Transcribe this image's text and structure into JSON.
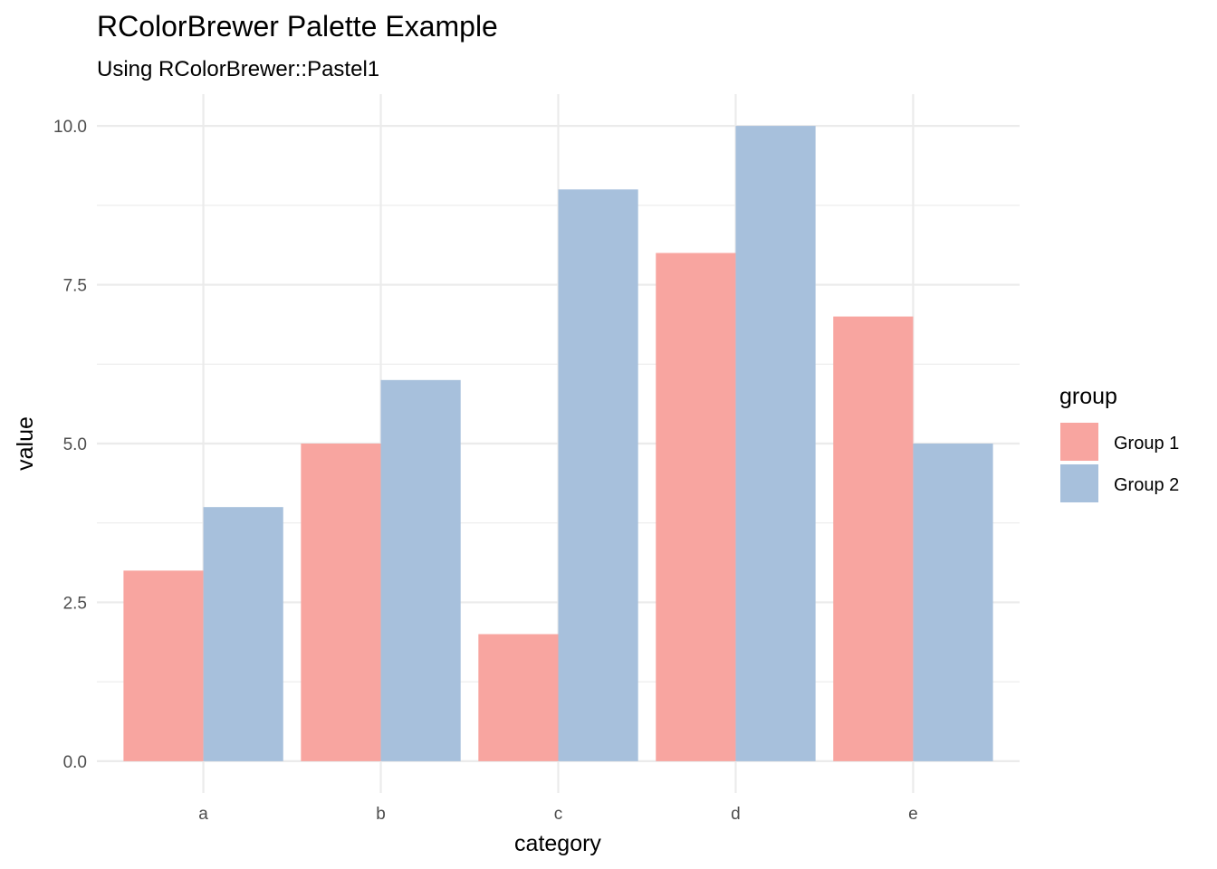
{
  "chart_data": {
    "type": "bar",
    "title": "RColorBrewer Palette Example",
    "subtitle": "Using RColorBrewer::Pastel1",
    "xlabel": "category",
    "ylabel": "value",
    "categories": [
      "a",
      "b",
      "c",
      "d",
      "e"
    ],
    "series": [
      {
        "name": "Group 1",
        "color": "#F8A5A0",
        "values": [
          3,
          5,
          2,
          8,
          7
        ]
      },
      {
        "name": "Group 2",
        "color": "#A7C0DC",
        "values": [
          4,
          6,
          9,
          10,
          5
        ]
      }
    ],
    "ylim": [
      0,
      10
    ],
    "yticks": [
      "0.0",
      "2.5",
      "5.0",
      "7.5",
      "10.0"
    ],
    "ytick_values": [
      0,
      2.5,
      5,
      7.5,
      10
    ],
    "grid": true,
    "legend": {
      "title": "group",
      "placement": "right"
    }
  }
}
